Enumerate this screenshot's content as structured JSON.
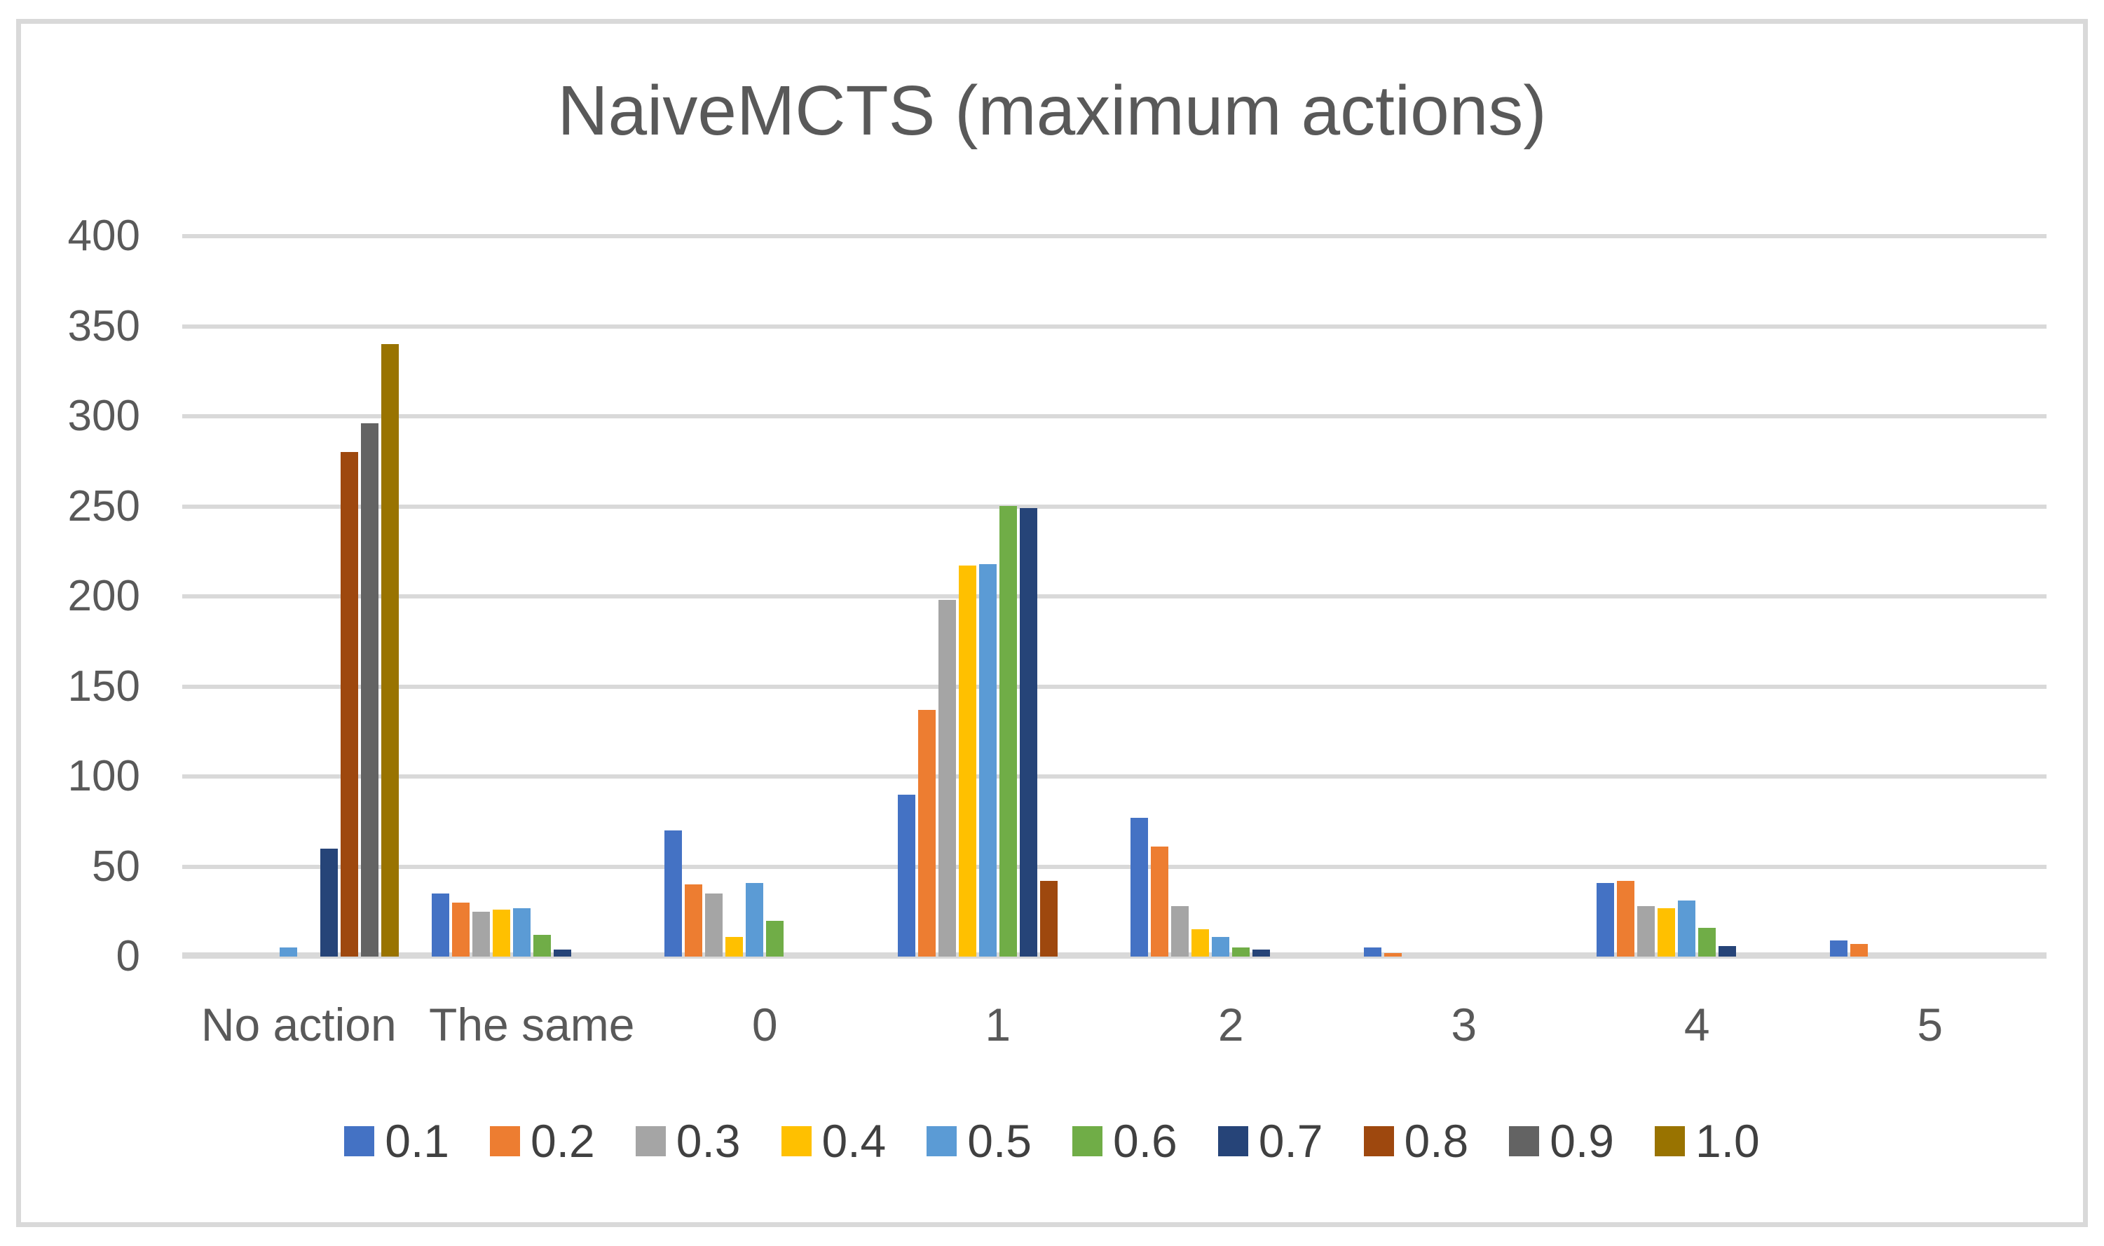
{
  "colors": {
    "background": "#FFFFFF",
    "frame_border": "#D9D9D9",
    "gridline": "#D9D9D9",
    "title_text": "#595959",
    "axis_text": "#595959",
    "legend_text": "#404040"
  },
  "chart_data": {
    "type": "bar",
    "title": "NaiveMCTS (maximum actions)",
    "xlabel": "",
    "ylabel": "",
    "ylim": [
      0,
      400
    ],
    "ytick_step": 50,
    "yticks": [
      "0",
      "50",
      "100",
      "150",
      "200",
      "250",
      "300",
      "350",
      "400"
    ],
    "grid": true,
    "legend_position": "bottom",
    "categories": [
      "No action",
      "The same",
      "0",
      "1",
      "2",
      "3",
      "4",
      "5"
    ],
    "series": [
      {
        "name": "0.1",
        "color": "#4472C4",
        "values": [
          0,
          35,
          70,
          90,
          77,
          5,
          41,
          9
        ]
      },
      {
        "name": "0.2",
        "color": "#ED7D31",
        "values": [
          0,
          30,
          40,
          137,
          61,
          2,
          42,
          7
        ]
      },
      {
        "name": "0.3",
        "color": "#A5A5A5",
        "values": [
          0,
          25,
          35,
          198,
          28,
          0,
          28,
          0
        ]
      },
      {
        "name": "0.4",
        "color": "#FFC000",
        "values": [
          0,
          26,
          11,
          217,
          15,
          0,
          27,
          0
        ]
      },
      {
        "name": "0.5",
        "color": "#5B9BD5",
        "values": [
          5,
          27,
          41,
          218,
          11,
          0,
          31,
          0
        ]
      },
      {
        "name": "0.6",
        "color": "#70AD47",
        "values": [
          0,
          12,
          20,
          250,
          5,
          0,
          16,
          0
        ]
      },
      {
        "name": "0.7",
        "color": "#264478",
        "values": [
          60,
          4,
          0,
          249,
          4,
          0,
          6,
          0
        ]
      },
      {
        "name": "0.8",
        "color": "#9E480E",
        "values": [
          280,
          0,
          0,
          42,
          0,
          0,
          0,
          0
        ]
      },
      {
        "name": "0.9",
        "color": "#636363",
        "values": [
          296,
          0,
          0,
          0,
          0,
          0,
          0,
          0
        ]
      },
      {
        "name": "1.0",
        "color": "#997300",
        "values": [
          340,
          0,
          0,
          0,
          0,
          0,
          0,
          0
        ]
      }
    ]
  }
}
